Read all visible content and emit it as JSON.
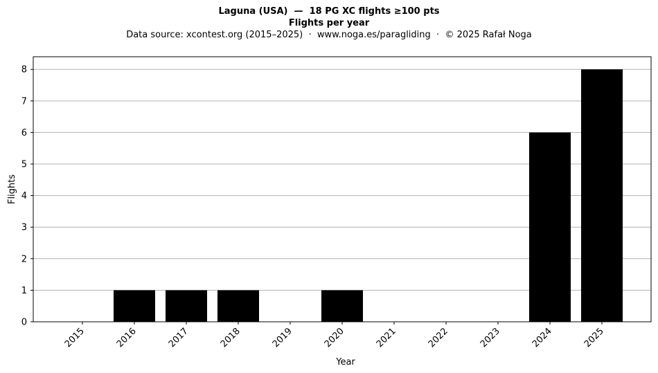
{
  "chart_data": {
    "type": "bar",
    "title": "Laguna (USA)  —  18 PG XC flights ≥100 pts",
    "subtitle": "Flights per year",
    "source_line": "Data source: xcontest.org (2015–2025)  ·  www.noga.es/paragliding  ·  © 2025 Rafał Noga",
    "xlabel": "Year",
    "ylabel": "Flights",
    "categories": [
      "2015",
      "2016",
      "2017",
      "2018",
      "2019",
      "2020",
      "2021",
      "2022",
      "2023",
      "2024",
      "2025"
    ],
    "values": [
      0,
      1,
      1,
      1,
      0,
      1,
      0,
      0,
      0,
      6,
      8
    ],
    "ylim": [
      0,
      8.4
    ],
    "yticks": [
      0,
      1,
      2,
      3,
      4,
      5,
      6,
      7,
      8
    ],
    "grid": "horizontal",
    "bar_color": "#000000",
    "grid_color": "#b0b0b0",
    "legend": "none"
  }
}
